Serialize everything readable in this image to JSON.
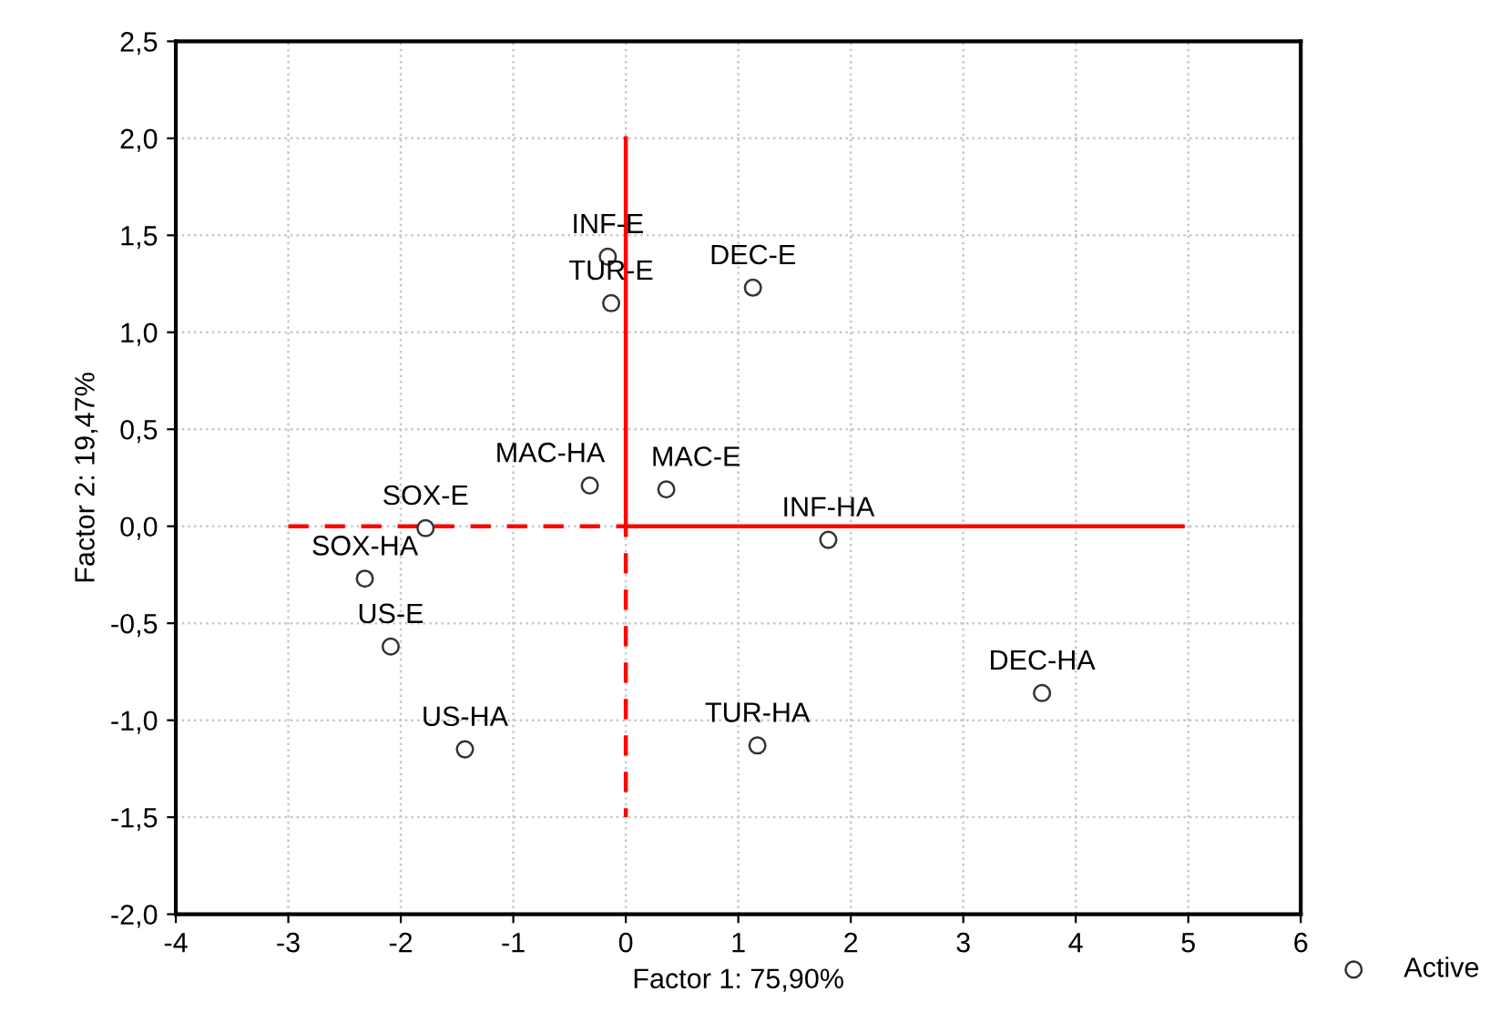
{
  "chart_data": {
    "type": "scatter",
    "xlabel": "Factor 1: 75,90%",
    "ylabel": "Factor 2: 19,47%",
    "xlim": [
      -4,
      6
    ],
    "ylim": [
      -2.0,
      2.5
    ],
    "xticks": [
      -4,
      -3,
      -2,
      -1,
      0,
      1,
      2,
      3,
      4,
      5,
      6
    ],
    "yticks": [
      {
        "value": -2.0,
        "label": "-2,0"
      },
      {
        "value": -1.5,
        "label": "-1,5"
      },
      {
        "value": -1.0,
        "label": "-1,0"
      },
      {
        "value": -0.5,
        "label": "-0,5"
      },
      {
        "value": 0.0,
        "label": "0,0"
      },
      {
        "value": 0.5,
        "label": "0,5"
      },
      {
        "value": 1.0,
        "label": "1,0"
      },
      {
        "value": 1.5,
        "label": "1,5"
      },
      {
        "value": 2.0,
        "label": "2,0"
      },
      {
        "value": 2.5,
        "label": "2,5"
      }
    ],
    "grid": true,
    "legend": "bottom right",
    "marker": "circle",
    "series": [
      {
        "type": "line",
        "marker": "none",
        "color": "#ff0000",
        "line_style": "solid",
        "x": [
          0,
          0,
          4.95
        ],
        "values": [
          2.0,
          0,
          0
        ]
      },
      {
        "type": "line",
        "marker": "none",
        "color": "#ff0000",
        "line_style": "dashed",
        "x": [
          -3,
          0,
          0
        ],
        "values": [
          0,
          0,
          -1.5
        ]
      },
      {
        "name": "Active",
        "color": "#333333",
        "x": [
          -0.16,
          -0.13,
          1.13,
          -0.32,
          0.36,
          -1.78,
          1.8,
          -2.32,
          -2.09,
          -1.43,
          1.17,
          3.7
        ],
        "values": [
          1.39,
          1.15,
          1.23,
          0.21,
          0.19,
          -0.01,
          -0.07,
          -0.27,
          -0.62,
          -1.15,
          -1.13,
          -0.86
        ]
      }
    ],
    "annotations": [
      {
        "text": "INF-E",
        "x": -0.16,
        "y": 1.39
      },
      {
        "text": "TUR-E",
        "x": -0.13,
        "y": 1.15
      },
      {
        "text": "DEC-E",
        "x": 1.13,
        "y": 1.23
      },
      {
        "text": "MAC-HA",
        "x": -0.32,
        "y": 0.21
      },
      {
        "text": "MAC-E",
        "x": 0.36,
        "y": 0.19
      },
      {
        "text": "SOX-E",
        "x": -1.78,
        "y": -0.01
      },
      {
        "text": "INF-HA",
        "x": 1.8,
        "y": -0.07
      },
      {
        "text": "SOX-HA",
        "x": -2.32,
        "y": -0.27
      },
      {
        "text": "US-E",
        "x": -2.09,
        "y": -0.62
      },
      {
        "text": "US-HA",
        "x": -1.43,
        "y": -1.15
      },
      {
        "text": "TUR-HA",
        "x": 1.17,
        "y": -1.13
      },
      {
        "text": "DEC-HA",
        "x": 3.7,
        "y": -0.86
      }
    ]
  }
}
